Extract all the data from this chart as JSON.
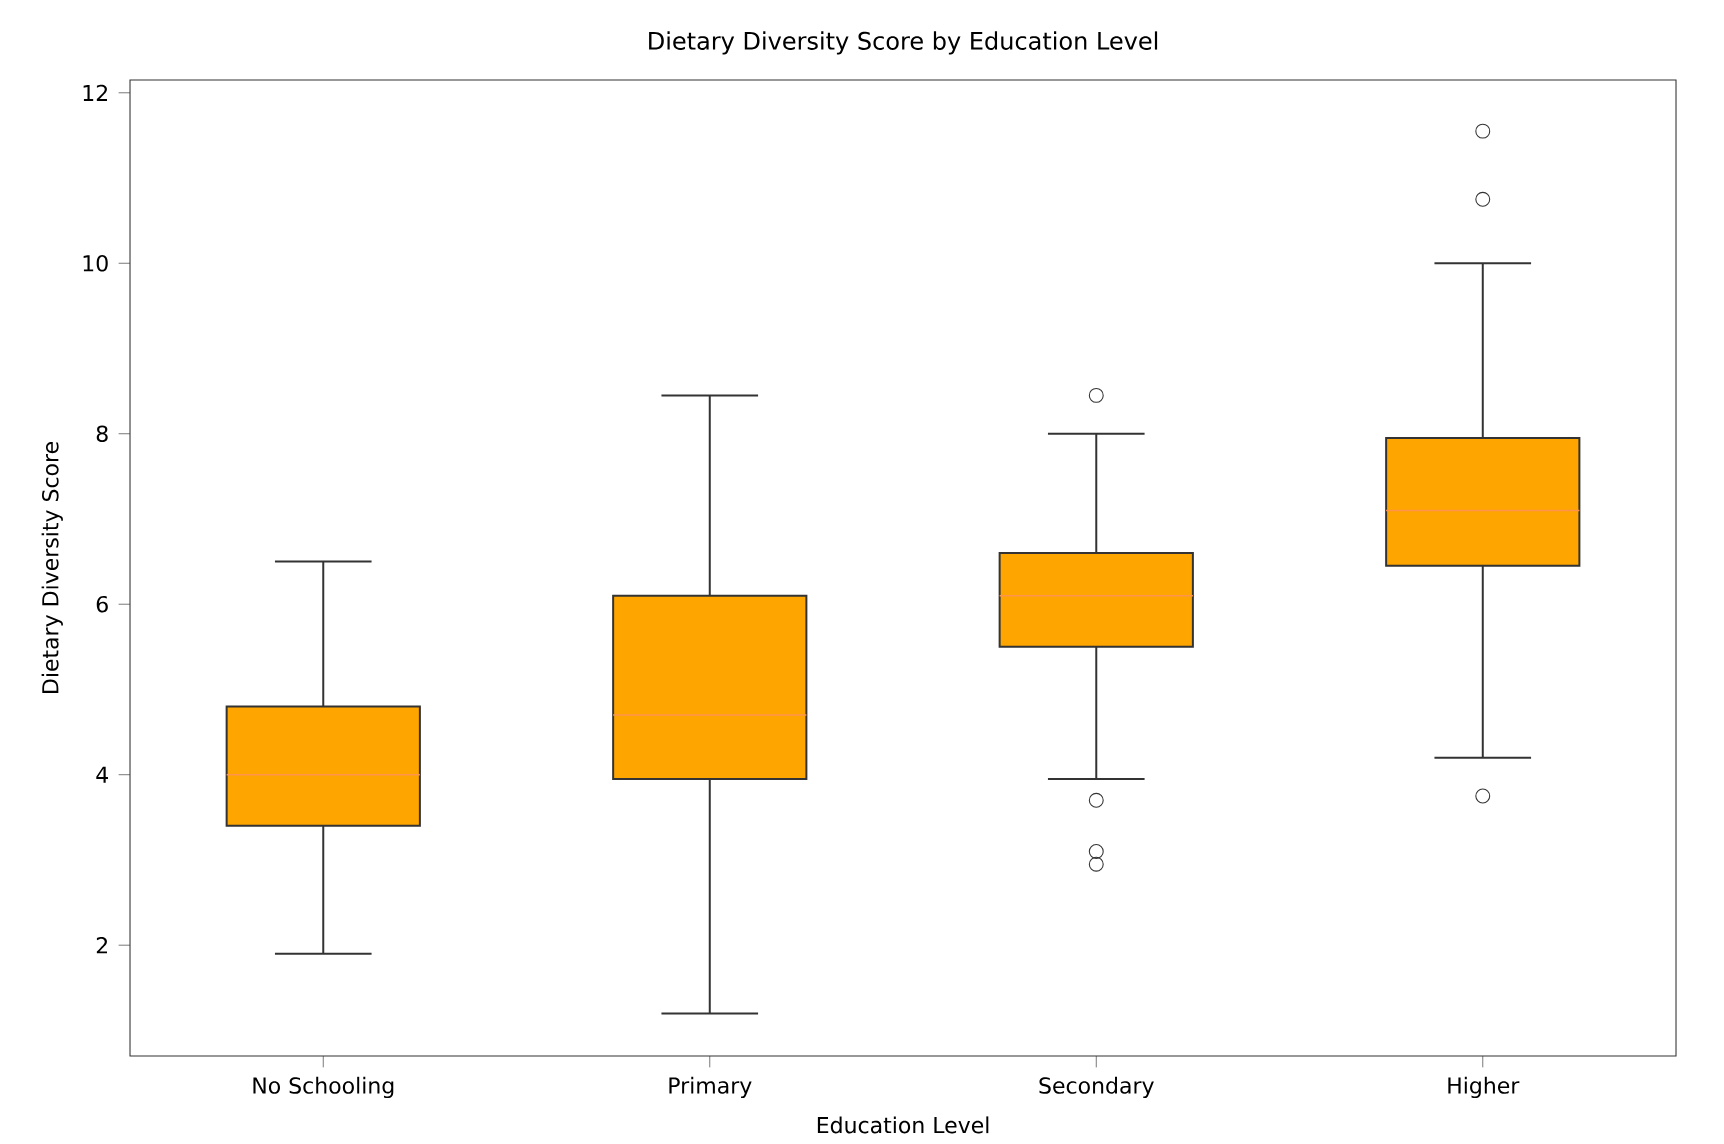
{
  "chart_data": {
    "type": "box",
    "title": "Dietary Diversity Score by Education Level",
    "xlabel": "Education Level",
    "ylabel": "Dietary Diversity Score",
    "categories": [
      "No Schooling",
      "Primary",
      "Secondary",
      "Higher"
    ],
    "color": "#ffa500",
    "boxes": [
      {
        "low": 1.9,
        "q1": 3.4,
        "median": 4.0,
        "q3": 4.8,
        "high": 6.5
      },
      {
        "low": 1.2,
        "q1": 3.95,
        "median": 4.7,
        "q3": 6.1,
        "high": 8.45
      },
      {
        "low": 3.95,
        "q1": 5.5,
        "median": 6.1,
        "q3": 6.6,
        "high": 8.0,
        "outliers": [
          8.45,
          3.7,
          3.1,
          2.95
        ]
      },
      {
        "low": 4.2,
        "q1": 6.45,
        "median": 7.1,
        "q3": 7.95,
        "high": 10.0,
        "outliers": [
          11.55,
          10.75,
          3.75
        ]
      }
    ],
    "ylim": [
      0.7,
      12.15
    ],
    "yticks": [
      2,
      4,
      6,
      8,
      10,
      12
    ],
    "grid": false
  }
}
